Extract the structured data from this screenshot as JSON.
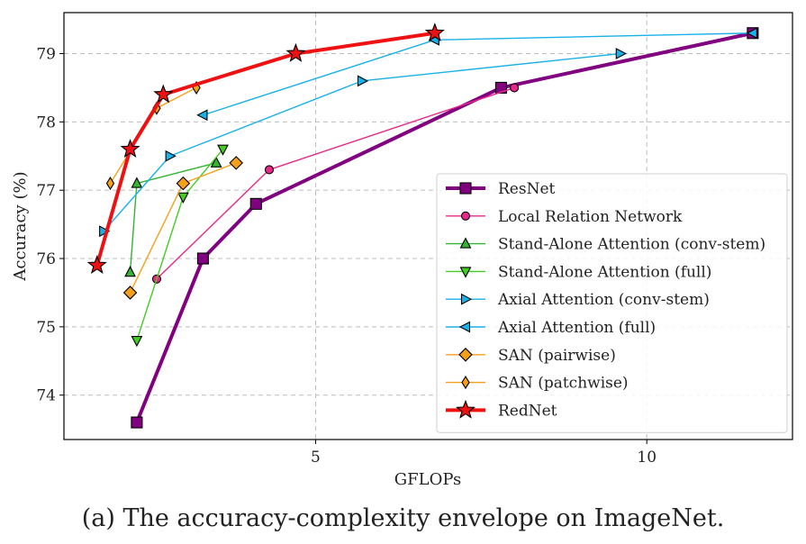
{
  "caption": "(a) The accuracy-complexity envelope on ImageNet.",
  "chart_data": {
    "type": "line",
    "xlabel": "GFLOPs",
    "ylabel": "Accuracy (%)",
    "xlim": [
      1.2,
      12.2
    ],
    "ylim": [
      73.35,
      79.6
    ],
    "xticks": [
      5,
      10
    ],
    "yticks": [
      74,
      75,
      76,
      77,
      78,
      79
    ],
    "grid": true,
    "legend_position": "lower-right",
    "series": [
      {
        "name": "ResNet",
        "color": "#800080",
        "marker": "square",
        "line_width": 4,
        "x": [
          2.3,
          3.3,
          4.1,
          7.8,
          11.6
        ],
        "y": [
          73.6,
          76.0,
          76.8,
          78.5,
          79.3
        ]
      },
      {
        "name": "Local Relation Network",
        "color": "#e7298a",
        "marker": "circle",
        "line_width": 1.4,
        "x": [
          2.6,
          4.3,
          8.0
        ],
        "y": [
          75.7,
          77.3,
          78.5
        ]
      },
      {
        "name": "Stand-Alone Attention (conv-stem)",
        "color": "#33b533",
        "marker": "triangle-up",
        "line_width": 1.4,
        "x": [
          2.2,
          2.3,
          3.5
        ],
        "y": [
          75.8,
          77.1,
          77.4
        ]
      },
      {
        "name": "Stand-Alone Attention (full)",
        "color": "#44cc22",
        "marker": "triangle-down",
        "line_width": 1.4,
        "x": [
          2.3,
          3.0,
          3.6
        ],
        "y": [
          74.8,
          76.9,
          77.6
        ]
      },
      {
        "name": "Axial Attention (conv-stem)",
        "color": "#1ab0e8",
        "marker": "triangle-right",
        "line_width": 1.4,
        "x": [
          1.8,
          2.8,
          5.7,
          9.6
        ],
        "y": [
          76.4,
          77.5,
          78.6,
          79.0
        ]
      },
      {
        "name": "Axial Attention (full)",
        "color": "#1ab0e8",
        "marker": "triangle-left",
        "line_width": 1.4,
        "x": [
          3.3,
          6.8,
          11.6
        ],
        "y": [
          78.1,
          79.2,
          79.3
        ]
      },
      {
        "name": "SAN (pairwise)",
        "color": "#f5a01a",
        "marker": "diamond",
        "line_width": 1.4,
        "x": [
          2.2,
          3.0,
          3.8
        ],
        "y": [
          75.5,
          77.1,
          77.4
        ]
      },
      {
        "name": "SAN (patchwise)",
        "color": "#f5a01a",
        "marker": "thin-diamond",
        "line_width": 1.4,
        "x": [
          1.9,
          2.6,
          3.2
        ],
        "y": [
          77.1,
          78.2,
          78.5
        ]
      },
      {
        "name": "RedNet",
        "color": "#ee1111",
        "marker": "star",
        "line_width": 4,
        "x": [
          1.7,
          2.2,
          2.7,
          4.7,
          6.8
        ],
        "y": [
          75.9,
          77.6,
          78.4,
          79.0,
          79.3
        ]
      }
    ]
  }
}
